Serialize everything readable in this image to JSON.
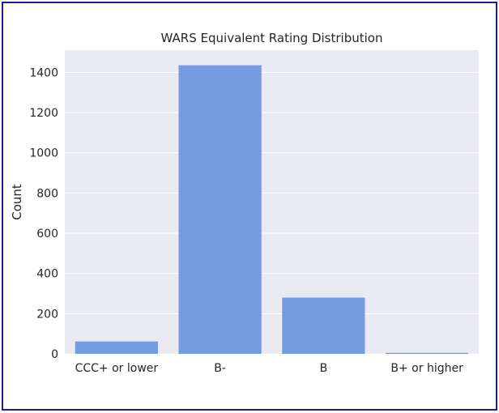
{
  "chart_data": {
    "type": "bar",
    "title": "WARS Equivalent Rating Distribution",
    "xlabel": "",
    "ylabel": "Count",
    "categories": [
      "CCC+ or lower",
      "B-",
      "B",
      "B+ or higher"
    ],
    "values": [
      62,
      1435,
      280,
      5
    ],
    "ylim": [
      0,
      1510
    ],
    "yticks": [
      0,
      200,
      400,
      600,
      800,
      1000,
      1200,
      1400
    ],
    "grid": true,
    "legend": "none",
    "colors": {
      "bar": "#739de0",
      "plot_background": "#eaeaf2",
      "grid": "#ffffff",
      "frame_border": "#1b1f8a"
    }
  }
}
